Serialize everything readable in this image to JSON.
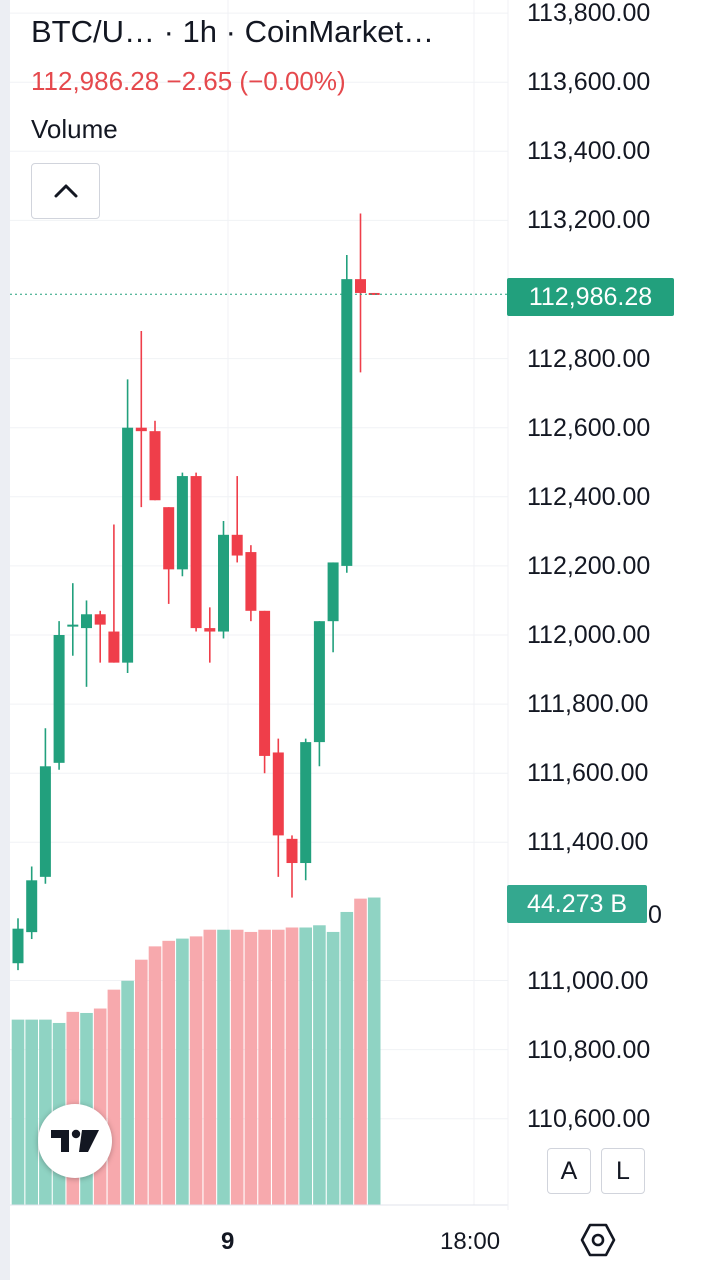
{
  "header": {
    "title": "BTC/U…  · 1h · CoinMarket…",
    "price_line": "112,986.28  −2.65 (−0.00%)",
    "indicator_label": "Volume"
  },
  "price_axis": {
    "labels": [
      "113,800.00",
      "113,600.00",
      "113,400.00",
      "113,200.00",
      "112,800.00",
      "112,600.00",
      "112,400.00",
      "112,200.00",
      "112,000.00",
      "111,800.00",
      "111,600.00",
      "111,400.00",
      "111,000.00",
      "110,800.00",
      "110,600.00"
    ],
    "label_under_volume_tag": "0"
  },
  "last_price_tag": "112,986.28",
  "volume_tag": "44.273 B",
  "time_axis": {
    "labels": [
      "9",
      "18:00"
    ]
  },
  "buttons": {
    "auto_scale": "A",
    "log_scale": "L"
  },
  "icons": {
    "collapse": "chevron-up-icon",
    "logo": "tradingview-logo-icon",
    "settings": "hexagon-settings-icon"
  },
  "colors": {
    "up": "#22a07d",
    "down": "#ef3e4a",
    "volume_up": "#8fd3c3",
    "volume_down": "#f7a9ad",
    "price_text": "#e5494d"
  },
  "chart_data": {
    "type": "candlestick",
    "price_unit": "USD",
    "y_range": [
      110500,
      113850
    ],
    "last_price": 112986.28,
    "change": -2.65,
    "change_percent": -0.0,
    "candles": [
      {
        "o": 111050,
        "h": 111180,
        "l": 111030,
        "c": 111150
      },
      {
        "o": 111140,
        "h": 111330,
        "l": 111120,
        "c": 111290
      },
      {
        "o": 111300,
        "h": 111730,
        "l": 111280,
        "c": 111620
      },
      {
        "o": 111630,
        "h": 112040,
        "l": 111610,
        "c": 112000
      },
      {
        "o": 112030,
        "h": 112150,
        "l": 111940,
        "c": 112030
      },
      {
        "o": 112020,
        "h": 112100,
        "l": 111850,
        "c": 112060
      },
      {
        "o": 112060,
        "h": 112070,
        "l": 111920,
        "c": 112030
      },
      {
        "o": 112010,
        "h": 112320,
        "l": 111920,
        "c": 111920
      },
      {
        "o": 111920,
        "h": 112740,
        "l": 111890,
        "c": 112600
      },
      {
        "o": 112600,
        "h": 112880,
        "l": 112370,
        "c": 112590
      },
      {
        "o": 112590,
        "h": 112620,
        "l": 112390,
        "c": 112390
      },
      {
        "o": 112370,
        "h": 112370,
        "l": 112090,
        "c": 112190
      },
      {
        "o": 112190,
        "h": 112470,
        "l": 112170,
        "c": 112460
      },
      {
        "o": 112460,
        "h": 112470,
        "l": 112010,
        "c": 112020
      },
      {
        "o": 112020,
        "h": 112080,
        "l": 111920,
        "c": 112010
      },
      {
        "o": 112010,
        "h": 112330,
        "l": 111990,
        "c": 112290
      },
      {
        "o": 112290,
        "h": 112460,
        "l": 112210,
        "c": 112230
      },
      {
        "o": 112240,
        "h": 112260,
        "l": 112040,
        "c": 112070
      },
      {
        "o": 112070,
        "h": 112070,
        "l": 111600,
        "c": 111650
      },
      {
        "o": 111660,
        "h": 111700,
        "l": 111300,
        "c": 111420
      },
      {
        "o": 111410,
        "h": 111420,
        "l": 111240,
        "c": 111340
      },
      {
        "o": 111340,
        "h": 111700,
        "l": 111290,
        "c": 111690
      },
      {
        "o": 111690,
        "h": 112040,
        "l": 111620,
        "c": 112040
      },
      {
        "o": 112040,
        "h": 112210,
        "l": 111950,
        "c": 112210
      },
      {
        "o": 112200,
        "h": 113100,
        "l": 112180,
        "c": 113030
      },
      {
        "o": 113030,
        "h": 113220,
        "l": 112760,
        "c": 112990
      },
      {
        "o": 112990,
        "h": 112990,
        "l": 112985,
        "c": 112986.28
      }
    ],
    "volume_unit": "B",
    "volume_last": 44.273,
    "volume_range": [
      0,
      46.6
    ],
    "volumes": [
      {
        "v": 16.7,
        "dir": "up"
      },
      {
        "v": 16.7,
        "dir": "up"
      },
      {
        "v": 16.7,
        "dir": "up"
      },
      {
        "v": 16.4,
        "dir": "up"
      },
      {
        "v": 17.4,
        "dir": "down"
      },
      {
        "v": 17.3,
        "dir": "up"
      },
      {
        "v": 17.7,
        "dir": "down"
      },
      {
        "v": 19.4,
        "dir": "down"
      },
      {
        "v": 20.2,
        "dir": "up"
      },
      {
        "v": 22.1,
        "dir": "down"
      },
      {
        "v": 23.3,
        "dir": "down"
      },
      {
        "v": 23.8,
        "dir": "down"
      },
      {
        "v": 24.0,
        "dir": "up"
      },
      {
        "v": 24.2,
        "dir": "down"
      },
      {
        "v": 24.8,
        "dir": "down"
      },
      {
        "v": 24.8,
        "dir": "up"
      },
      {
        "v": 24.8,
        "dir": "down"
      },
      {
        "v": 24.6,
        "dir": "down"
      },
      {
        "v": 24.8,
        "dir": "down"
      },
      {
        "v": 24.8,
        "dir": "down"
      },
      {
        "v": 25.0,
        "dir": "down"
      },
      {
        "v": 25.0,
        "dir": "up"
      },
      {
        "v": 25.2,
        "dir": "up"
      },
      {
        "v": 24.6,
        "dir": "up"
      },
      {
        "v": 26.4,
        "dir": "up"
      },
      {
        "v": 27.6,
        "dir": "down"
      },
      {
        "v": 27.7,
        "dir": "up"
      }
    ]
  }
}
